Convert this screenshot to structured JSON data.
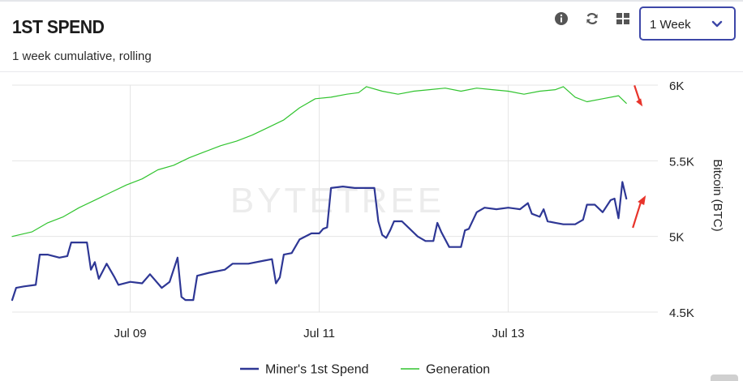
{
  "header": {
    "title": "1ST SPEND",
    "subtitle": "1 week cumulative, rolling"
  },
  "toolbar": {
    "info_icon": "info-icon",
    "refresh_icon": "refresh-icon",
    "grid_icon": "grid-icon",
    "range_select": {
      "selected": "1 Week",
      "icon": "chevron-down-icon"
    }
  },
  "colors": {
    "spend": "#2e3795",
    "generation": "#31c42f",
    "grid": "#e4e4e4",
    "accent_border": "#3d47a8",
    "annotation_arrow": "#e8342b"
  },
  "watermark": "BYTETREE",
  "chart_data": {
    "type": "line",
    "x_tick_labels": [
      "Jul 09",
      "Jul 11",
      "Jul 13"
    ],
    "x_range": [
      "Jul 07 18:00",
      "Jul 14 14:00"
    ],
    "ylabel": "Bitcoin (BTC)",
    "y_tick_labels": [
      "4.5K",
      "5K",
      "5.5K",
      "6K"
    ],
    "ylim": [
      4500,
      6000
    ],
    "grid": true,
    "legend_position": "bottom",
    "series": [
      {
        "name": "Miner's 1st Spend",
        "points": [
          [
            "Jul 07 18:00",
            4580
          ],
          [
            "Jul 07 19:00",
            4660
          ],
          [
            "Jul 07 21:00",
            4670
          ],
          [
            "Jul 08 00:00",
            4680
          ],
          [
            "Jul 08 01:00",
            4880
          ],
          [
            "Jul 08 03:00",
            4880
          ],
          [
            "Jul 08 06:00",
            4860
          ],
          [
            "Jul 08 08:00",
            4870
          ],
          [
            "Jul 08 09:00",
            4960
          ],
          [
            "Jul 08 13:00",
            4960
          ],
          [
            "Jul 08 14:00",
            4780
          ],
          [
            "Jul 08 15:00",
            4830
          ],
          [
            "Jul 08 16:00",
            4720
          ],
          [
            "Jul 08 18:00",
            4820
          ],
          [
            "Jul 08 20:00",
            4730
          ],
          [
            "Jul 08 21:00",
            4680
          ],
          [
            "Jul 09 00:00",
            4700
          ],
          [
            "Jul 09 03:00",
            4690
          ],
          [
            "Jul 09 05:00",
            4750
          ],
          [
            "Jul 09 08:00",
            4660
          ],
          [
            "Jul 09 10:00",
            4700
          ],
          [
            "Jul 09 12:00",
            4860
          ],
          [
            "Jul 09 13:00",
            4600
          ],
          [
            "Jul 09 14:00",
            4580
          ],
          [
            "Jul 09 16:00",
            4580
          ],
          [
            "Jul 09 17:00",
            4740
          ],
          [
            "Jul 09 20:00",
            4760
          ],
          [
            "Jul 10 00:00",
            4780
          ],
          [
            "Jul 10 02:00",
            4820
          ],
          [
            "Jul 10 06:00",
            4820
          ],
          [
            "Jul 10 10:00",
            4840
          ],
          [
            "Jul 10 12:00",
            4850
          ],
          [
            "Jul 10 13:00",
            4690
          ],
          [
            "Jul 10 14:00",
            4730
          ],
          [
            "Jul 10 15:00",
            4880
          ],
          [
            "Jul 10 17:00",
            4890
          ],
          [
            "Jul 10 19:00",
            4980
          ],
          [
            "Jul 10 22:00",
            5020
          ],
          [
            "Jul 11 00:00",
            5020
          ],
          [
            "Jul 11 01:00",
            5050
          ],
          [
            "Jul 11 02:00",
            5060
          ],
          [
            "Jul 11 03:00",
            5320
          ],
          [
            "Jul 11 06:00",
            5330
          ],
          [
            "Jul 11 09:00",
            5320
          ],
          [
            "Jul 11 12:00",
            5320
          ],
          [
            "Jul 11 14:00",
            5320
          ],
          [
            "Jul 11 15:00",
            5100
          ],
          [
            "Jul 11 16:00",
            5010
          ],
          [
            "Jul 11 17:00",
            4990
          ],
          [
            "Jul 11 18:00",
            5040
          ],
          [
            "Jul 11 19:00",
            5100
          ],
          [
            "Jul 11 21:00",
            5100
          ],
          [
            "Jul 11 23:00",
            5050
          ],
          [
            "Jul 12 01:00",
            5000
          ],
          [
            "Jul 12 03:00",
            4970
          ],
          [
            "Jul 12 05:00",
            4970
          ],
          [
            "Jul 12 06:00",
            5090
          ],
          [
            "Jul 12 07:00",
            5030
          ],
          [
            "Jul 12 09:00",
            4930
          ],
          [
            "Jul 12 12:00",
            4930
          ],
          [
            "Jul 12 13:00",
            5040
          ],
          [
            "Jul 12 14:00",
            5050
          ],
          [
            "Jul 12 16:00",
            5160
          ],
          [
            "Jul 12 18:00",
            5190
          ],
          [
            "Jul 12 21:00",
            5180
          ],
          [
            "Jul 13 00:00",
            5190
          ],
          [
            "Jul 13 03:00",
            5180
          ],
          [
            "Jul 13 05:00",
            5220
          ],
          [
            "Jul 13 06:00",
            5150
          ],
          [
            "Jul 13 08:00",
            5130
          ],
          [
            "Jul 13 09:00",
            5180
          ],
          [
            "Jul 13 10:00",
            5100
          ],
          [
            "Jul 13 12:00",
            5090
          ],
          [
            "Jul 13 14:00",
            5080
          ],
          [
            "Jul 13 17:00",
            5080
          ],
          [
            "Jul 13 19:00",
            5110
          ],
          [
            "Jul 13 20:00",
            5210
          ],
          [
            "Jul 13 22:00",
            5210
          ],
          [
            "Jul 14 00:00",
            5160
          ],
          [
            "Jul 14 02:00",
            5240
          ],
          [
            "Jul 14 03:00",
            5250
          ],
          [
            "Jul 14 04:00",
            5120
          ],
          [
            "Jul 14 05:00",
            5360
          ],
          [
            "Jul 14 06:00",
            5250
          ]
        ]
      },
      {
        "name": "Generation",
        "points": [
          [
            "Jul 07 18:00",
            5000
          ],
          [
            "Jul 07 23:00",
            5030
          ],
          [
            "Jul 08 03:00",
            5090
          ],
          [
            "Jul 08 07:00",
            5130
          ],
          [
            "Jul 08 11:00",
            5190
          ],
          [
            "Jul 08 15:00",
            5240
          ],
          [
            "Jul 08 19:00",
            5290
          ],
          [
            "Jul 08 23:00",
            5340
          ],
          [
            "Jul 09 03:00",
            5380
          ],
          [
            "Jul 09 07:00",
            5440
          ],
          [
            "Jul 09 11:00",
            5470
          ],
          [
            "Jul 09 15:00",
            5520
          ],
          [
            "Jul 09 19:00",
            5560
          ],
          [
            "Jul 09 23:00",
            5600
          ],
          [
            "Jul 10 03:00",
            5630
          ],
          [
            "Jul 10 07:00",
            5670
          ],
          [
            "Jul 10 11:00",
            5720
          ],
          [
            "Jul 10 15:00",
            5770
          ],
          [
            "Jul 10 19:00",
            5850
          ],
          [
            "Jul 10 23:00",
            5910
          ],
          [
            "Jul 11 03:00",
            5920
          ],
          [
            "Jul 11 07:00",
            5940
          ],
          [
            "Jul 11 10:00",
            5950
          ],
          [
            "Jul 11 12:00",
            5990
          ],
          [
            "Jul 11 16:00",
            5960
          ],
          [
            "Jul 11 20:00",
            5940
          ],
          [
            "Jul 12 00:00",
            5960
          ],
          [
            "Jul 12 04:00",
            5970
          ],
          [
            "Jul 12 08:00",
            5980
          ],
          [
            "Jul 12 12:00",
            5960
          ],
          [
            "Jul 12 16:00",
            5980
          ],
          [
            "Jul 12 20:00",
            5970
          ],
          [
            "Jul 13 00:00",
            5960
          ],
          [
            "Jul 13 04:00",
            5940
          ],
          [
            "Jul 13 08:00",
            5960
          ],
          [
            "Jul 13 12:00",
            5970
          ],
          [
            "Jul 13 14:00",
            5990
          ],
          [
            "Jul 13 17:00",
            5920
          ],
          [
            "Jul 13 20:00",
            5890
          ],
          [
            "Jul 14 00:00",
            5910
          ],
          [
            "Jul 14 04:00",
            5930
          ],
          [
            "Jul 14 06:00",
            5880
          ]
        ]
      }
    ],
    "annotations": [
      {
        "type": "arrow",
        "description": "red arrow pointing down at end of Generation line"
      },
      {
        "type": "arrow",
        "description": "red arrow pointing up at end of Miner's 1st Spend line"
      }
    ]
  }
}
